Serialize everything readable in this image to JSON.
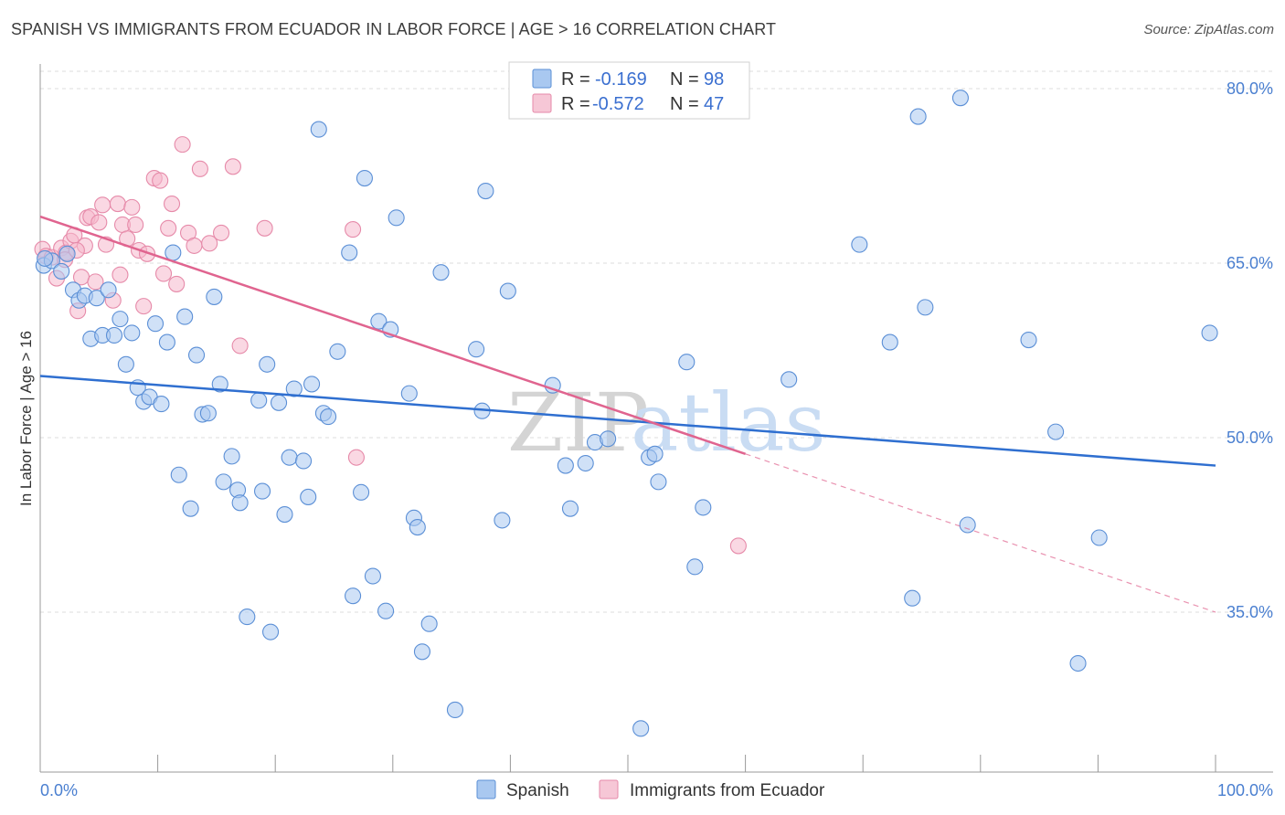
{
  "header": {
    "title": "SPANISH VS IMMIGRANTS FROM ECUADOR IN LABOR FORCE | AGE > 16 CORRELATION CHART",
    "source": "Source: ZipAtlas.com"
  },
  "watermark": {
    "part1": "ZIP",
    "part2": "atlas"
  },
  "colors": {
    "blue_fill": "#a9c8f0",
    "blue_stroke": "#5b8fd6",
    "blue_line": "#2f6fd0",
    "pink_fill": "#f6b8cc",
    "pink_stroke": "#e68aa9",
    "pink_line": "#e0648f",
    "grid": "#dddddd",
    "tick_label": "#4a7fd0"
  },
  "legend": {
    "items": [
      {
        "r_label": "R =",
        "r_value": "-0.169",
        "n_label": "N =",
        "n_value": "98",
        "color": "blue"
      },
      {
        "r_label": "R =",
        "r_value": "-0.572",
        "n_label": "N =",
        "n_value": "47",
        "color": "pink"
      }
    ]
  },
  "bottom_legend": {
    "series1": "Spanish",
    "series2": "Immigrants from Ecuador"
  },
  "chart_data": {
    "type": "scatter",
    "title": "SPANISH VS IMMIGRANTS FROM ECUADOR IN LABOR FORCE | AGE > 16 CORRELATION CHART",
    "xlabel": "",
    "ylabel": "In Labor Force | Age > 16",
    "xlim": [
      0,
      100
    ],
    "ylim": [
      22,
      82
    ],
    "x_tick_labels": [
      "0.0%",
      "100.0%"
    ],
    "y_ticks": [
      35,
      50,
      65,
      80
    ],
    "y_tick_labels": [
      "35.0%",
      "50.0%",
      "65.0%",
      "80.0%"
    ],
    "grid": "horizontal dashed",
    "legend_placement": "top-center",
    "series": [
      {
        "name": "Spanish",
        "color": "#a9c8f0",
        "R": -0.169,
        "N": 98,
        "trend": {
          "x": [
            0,
            100
          ],
          "y": [
            55.3,
            47.6
          ]
        },
        "points": [
          [
            0.3,
            64.8
          ],
          [
            1.0,
            65.2
          ],
          [
            1.8,
            64.3
          ],
          [
            2.3,
            65.8
          ],
          [
            2.8,
            62.7
          ],
          [
            3.3,
            61.8
          ],
          [
            3.8,
            62.2
          ],
          [
            4.3,
            58.5
          ],
          [
            4.8,
            62.0
          ],
          [
            5.3,
            58.8
          ],
          [
            5.8,
            62.7
          ],
          [
            6.3,
            58.8
          ],
          [
            6.8,
            60.2
          ],
          [
            7.3,
            56.3
          ],
          [
            7.8,
            59.0
          ],
          [
            8.3,
            54.3
          ],
          [
            8.8,
            53.1
          ],
          [
            9.3,
            53.5
          ],
          [
            9.8,
            59.8
          ],
          [
            10.3,
            52.9
          ],
          [
            10.8,
            58.2
          ],
          [
            11.3,
            65.9
          ],
          [
            11.8,
            46.8
          ],
          [
            12.3,
            60.4
          ],
          [
            12.8,
            43.9
          ],
          [
            13.3,
            57.1
          ],
          [
            13.8,
            52.0
          ],
          [
            14.3,
            52.1
          ],
          [
            14.8,
            62.1
          ],
          [
            15.3,
            54.6
          ],
          [
            15.6,
            46.2
          ],
          [
            16.3,
            48.4
          ],
          [
            16.8,
            45.5
          ],
          [
            17.0,
            44.4
          ],
          [
            17.6,
            34.6
          ],
          [
            18.6,
            53.2
          ],
          [
            18.9,
            45.4
          ],
          [
            19.3,
            56.3
          ],
          [
            19.6,
            33.3
          ],
          [
            20.3,
            53.0
          ],
          [
            20.8,
            43.4
          ],
          [
            21.2,
            48.3
          ],
          [
            21.6,
            54.2
          ],
          [
            22.4,
            48.0
          ],
          [
            22.8,
            44.9
          ],
          [
            23.1,
            54.6
          ],
          [
            23.7,
            76.5
          ],
          [
            24.1,
            52.1
          ],
          [
            24.5,
            51.8
          ],
          [
            25.3,
            57.4
          ],
          [
            26.3,
            65.9
          ],
          [
            26.6,
            36.4
          ],
          [
            27.3,
            45.3
          ],
          [
            27.6,
            72.3
          ],
          [
            28.3,
            38.1
          ],
          [
            28.8,
            60.0
          ],
          [
            29.4,
            35.1
          ],
          [
            29.8,
            59.3
          ],
          [
            30.3,
            68.9
          ],
          [
            31.4,
            53.8
          ],
          [
            31.8,
            43.1
          ],
          [
            32.1,
            42.3
          ],
          [
            32.5,
            31.6
          ],
          [
            33.1,
            34.0
          ],
          [
            34.1,
            64.2
          ],
          [
            35.3,
            26.6
          ],
          [
            37.1,
            57.6
          ],
          [
            37.6,
            52.3
          ],
          [
            37.9,
            71.2
          ],
          [
            39.3,
            42.9
          ],
          [
            39.8,
            62.6
          ],
          [
            43.6,
            54.5
          ],
          [
            44.7,
            47.6
          ],
          [
            45.1,
            43.9
          ],
          [
            46.4,
            47.8
          ],
          [
            47.2,
            49.6
          ],
          [
            48.3,
            49.9
          ],
          [
            51.1,
            25.0
          ],
          [
            51.8,
            48.3
          ],
          [
            52.3,
            48.6
          ],
          [
            52.6,
            46.2
          ],
          [
            55.0,
            56.5
          ],
          [
            55.7,
            38.9
          ],
          [
            56.4,
            44.0
          ],
          [
            63.7,
            55.0
          ],
          [
            69.7,
            66.6
          ],
          [
            72.3,
            58.2
          ],
          [
            74.2,
            36.2
          ],
          [
            74.7,
            77.6
          ],
          [
            75.3,
            61.2
          ],
          [
            78.3,
            79.2
          ],
          [
            78.9,
            42.5
          ],
          [
            84.1,
            58.4
          ],
          [
            86.4,
            50.5
          ],
          [
            88.3,
            30.6
          ],
          [
            90.1,
            41.4
          ],
          [
            99.5,
            59.0
          ],
          [
            0.4,
            65.4
          ]
        ]
      },
      {
        "name": "Immigrants from Ecuador",
        "color": "#f6b8cc",
        "R": -0.572,
        "N": 47,
        "trend": {
          "x": [
            0,
            60
          ],
          "y": [
            69.0,
            48.6
          ]
        },
        "trend_dashed": {
          "x": [
            60,
            100
          ],
          "y": [
            48.6,
            35.0
          ]
        },
        "points": [
          [
            0.2,
            66.2
          ],
          [
            0.5,
            65.6
          ],
          [
            1.0,
            65.5
          ],
          [
            1.4,
            63.7
          ],
          [
            1.8,
            66.3
          ],
          [
            2.2,
            65.9
          ],
          [
            2.6,
            66.9
          ],
          [
            2.9,
            67.4
          ],
          [
            3.2,
            60.9
          ],
          [
            3.5,
            63.8
          ],
          [
            3.8,
            66.5
          ],
          [
            4.0,
            68.9
          ],
          [
            4.3,
            69.0
          ],
          [
            4.7,
            63.4
          ],
          [
            5.0,
            68.5
          ],
          [
            5.3,
            70.0
          ],
          [
            5.6,
            66.6
          ],
          [
            6.2,
            61.8
          ],
          [
            6.6,
            70.1
          ],
          [
            6.8,
            64.0
          ],
          [
            7.0,
            68.3
          ],
          [
            7.4,
            67.1
          ],
          [
            7.8,
            69.8
          ],
          [
            8.1,
            68.3
          ],
          [
            8.4,
            66.1
          ],
          [
            8.8,
            61.3
          ],
          [
            9.1,
            65.8
          ],
          [
            9.7,
            72.3
          ],
          [
            10.2,
            72.1
          ],
          [
            10.5,
            64.1
          ],
          [
            10.9,
            68.0
          ],
          [
            11.2,
            70.1
          ],
          [
            11.6,
            63.2
          ],
          [
            12.1,
            75.2
          ],
          [
            12.6,
            67.6
          ],
          [
            13.1,
            66.5
          ],
          [
            13.6,
            73.1
          ],
          [
            14.4,
            66.7
          ],
          [
            15.4,
            67.6
          ],
          [
            16.4,
            73.3
          ],
          [
            17.0,
            57.9
          ],
          [
            19.1,
            68.0
          ],
          [
            26.6,
            67.9
          ],
          [
            26.9,
            48.3
          ],
          [
            59.4,
            40.7
          ],
          [
            2.1,
            65.3
          ],
          [
            3.1,
            66.1
          ]
        ]
      }
    ]
  }
}
